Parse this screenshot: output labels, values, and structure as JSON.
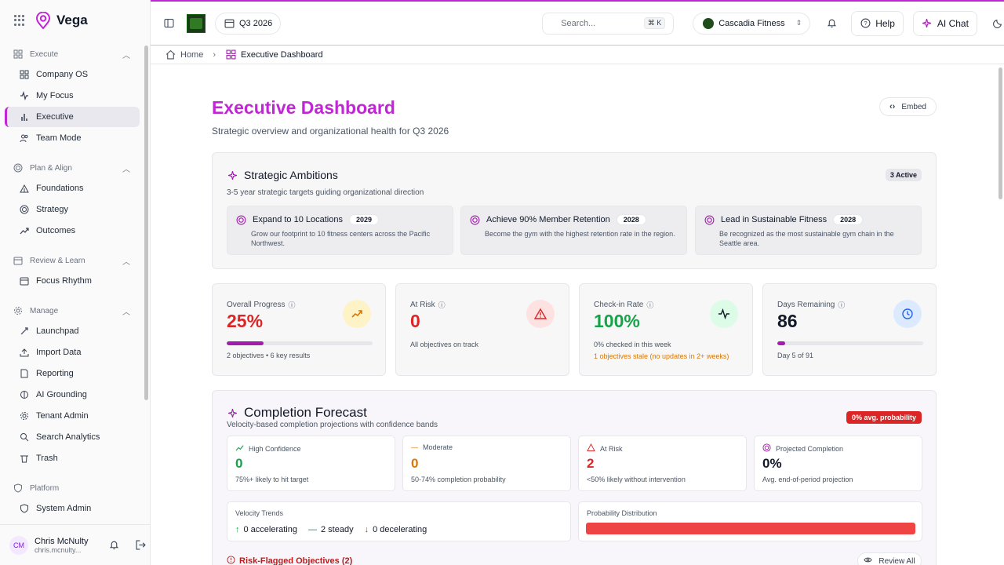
{
  "app": {
    "name": "Vega"
  },
  "sidebar": {
    "groups": [
      {
        "label": "Execute",
        "items": [
          "Company OS",
          "My Focus",
          "Executive",
          "Team Mode"
        ]
      },
      {
        "label": "Plan & Align",
        "items": [
          "Foundations",
          "Strategy",
          "Outcomes"
        ]
      },
      {
        "label": "Review & Learn",
        "items": [
          "Focus Rhythm"
        ]
      },
      {
        "label": "Manage",
        "items": [
          "Launchpad",
          "Import Data",
          "Reporting",
          "AI Grounding",
          "Tenant Admin",
          "Search Analytics",
          "Trash"
        ]
      },
      {
        "label": "Platform",
        "items": [
          "System Admin"
        ]
      }
    ],
    "active_item": "Executive",
    "user": {
      "initials": "CM",
      "name": "Chris McNulty",
      "email": "chris.mcnulty..."
    }
  },
  "topbar": {
    "period": "Q3 2026",
    "search_placeholder": "Search...",
    "search_shortcut": "⌘ K",
    "tenant": "Cascadia Fitness",
    "help_label": "Help",
    "ai_chat_label": "AI Chat"
  },
  "breadcrumb": {
    "home": "Home",
    "current": "Executive Dashboard"
  },
  "page": {
    "title": "Executive Dashboard",
    "subtitle": "Strategic overview and organizational health for Q3 2026",
    "embed_label": "Embed"
  },
  "ambitions": {
    "title": "Strategic Ambitions",
    "subtitle": "3-5 year strategic targets guiding organizational direction",
    "badge": "3 Active",
    "items": [
      {
        "title": "Expand to 10 Locations",
        "year": "2029",
        "desc": "Grow our footprint to 10 fitness centers across the Pacific Northwest."
      },
      {
        "title": "Achieve 90% Member Retention",
        "year": "2028",
        "desc": "Become the gym with the highest retention rate in the region."
      },
      {
        "title": "Lead in Sustainable Fitness",
        "year": "2028",
        "desc": "Be recognized as the most sustainable gym chain in the Seattle area."
      }
    ]
  },
  "kpis": {
    "progress": {
      "label": "Overall Progress",
      "value": "25%",
      "fraction": 0.25,
      "foot": "2 objectives • 6 key results",
      "color": "#dc2626"
    },
    "at_risk": {
      "label": "At Risk",
      "value": "0",
      "foot": "All objectives on track",
      "color": "#dc2626"
    },
    "checkin": {
      "label": "Check-in Rate",
      "value": "100%",
      "foot": "0% checked in this week",
      "warning": "1 objectives stale (no updates in 2+ weeks)",
      "color": "#16a34a"
    },
    "days": {
      "label": "Days Remaining",
      "value": "86",
      "fraction": 0.055,
      "foot": "Day 5 of 91",
      "color": "#111827"
    }
  },
  "forecast": {
    "title": "Completion Forecast",
    "subtitle": "Velocity-based completion projections with confidence bands",
    "badge": "0% avg. probability",
    "boxes": [
      {
        "label": "High Confidence",
        "value": "0",
        "foot": "75%+ likely to hit target",
        "color": "#16a34a"
      },
      {
        "label": "Moderate",
        "value": "0",
        "foot": "50-74% completion probability",
        "color": "#d97706"
      },
      {
        "label": "At Risk",
        "value": "2",
        "foot": "<50% likely without intervention",
        "color": "#dc2626"
      },
      {
        "label": "Projected Completion",
        "value": "0%",
        "foot": "Avg. end-of-period projection",
        "color": "#111827"
      }
    ],
    "velocity": {
      "label": "Velocity Trends",
      "accelerating": "0 accelerating",
      "steady": "2 steady",
      "decelerating": "0 decelerating"
    },
    "distribution": {
      "label": "Probability Distribution"
    },
    "risk_flagged": "Risk-Flagged Objectives (2)",
    "review_label": "Review All"
  }
}
